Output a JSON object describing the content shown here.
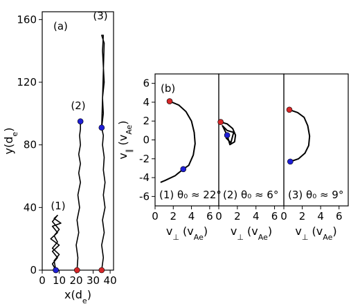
{
  "chart_data": [
    {
      "type": "line",
      "panel_label": "(a)",
      "xlabel": "x(d_e)",
      "ylabel": "y(d_e)",
      "xlim": [
        0,
        42
      ],
      "ylim": [
        0,
        165
      ],
      "xticks": [
        0,
        10,
        20,
        30,
        40
      ],
      "yticks": [
        0,
        40,
        80,
        120,
        160
      ],
      "grid": false,
      "series": [
        {
          "name": "(1)",
          "start": [
            8,
            0
          ],
          "end": [
            8,
            0
          ],
          "points": [
            [
              8,
              0
            ],
            [
              6,
              4
            ],
            [
              9,
              8
            ],
            [
              6,
              12
            ],
            [
              10,
              16
            ],
            [
              5,
              20
            ],
            [
              9,
              24
            ],
            [
              6,
              28
            ],
            [
              11,
              30
            ],
            [
              7,
              33
            ],
            [
              9,
              35
            ],
            [
              6,
              31
            ],
            [
              10,
              26
            ],
            [
              7,
              22
            ],
            [
              9,
              18
            ],
            [
              6,
              14
            ],
            [
              10,
              10
            ],
            [
              7,
              6
            ],
            [
              8,
              0
            ]
          ]
        },
        {
          "name": "(2)",
          "start": [
            20.5,
            0
          ],
          "end": [
            22.5,
            95
          ],
          "points": [
            [
              20.5,
              0
            ],
            [
              21,
              8
            ],
            [
              20,
              16
            ],
            [
              21.5,
              24
            ],
            [
              20.5,
              32
            ],
            [
              22,
              40
            ],
            [
              21,
              48
            ],
            [
              22.5,
              56
            ],
            [
              21.5,
              62
            ],
            [
              22.5,
              68
            ],
            [
              21.5,
              74
            ],
            [
              22.5,
              80
            ],
            [
              22,
              86
            ],
            [
              22.5,
              90
            ],
            [
              22.5,
              95
            ]
          ]
        },
        {
          "name": "(3)",
          "start": [
            35,
            0
          ],
          "end": [
            35,
            91
          ],
          "points": [
            [
              35,
              0
            ],
            [
              36,
              8
            ],
            [
              35,
              16
            ],
            [
              36.5,
              24
            ],
            [
              35.5,
              32
            ],
            [
              37,
              40
            ],
            [
              36,
              48
            ],
            [
              37,
              56
            ],
            [
              36,
              64
            ],
            [
              36.5,
              72
            ],
            [
              35.5,
              80
            ],
            [
              36,
              86
            ],
            [
              35,
              91
            ],
            [
              36,
              100
            ],
            [
              35.5,
              110
            ],
            [
              36.5,
              120
            ],
            [
              36,
              130
            ],
            [
              35.5,
              140
            ],
            [
              36,
              150
            ],
            [
              35,
              150
            ],
            [
              36.5,
              145
            ],
            [
              35,
              91
            ]
          ]
        }
      ],
      "annotations": [
        "(1)",
        "(2)",
        "(3)"
      ]
    },
    {
      "type": "line",
      "panel_label": "(b)",
      "xlabel": "v_⊥ (v_Ae)",
      "ylabel": "v_∥ (v_Ae)",
      "xlim": [
        0,
        7
      ],
      "ylim": [
        -7,
        7
      ],
      "xticks": [
        0,
        2,
        4,
        6
      ],
      "yticks": [
        -6,
        -4,
        -2,
        0,
        2,
        4,
        6
      ],
      "grid": false,
      "subpanels": [
        {
          "name": "(1)",
          "annotation": "(1) θ₀ ≈ 22°",
          "start": [
            1.6,
            4.1
          ],
          "end": [
            3.1,
            -3.1
          ],
          "points": [
            [
              1.6,
              4.1
            ],
            [
              2.6,
              3.7
            ],
            [
              3.4,
              3.0
            ],
            [
              4.0,
              2.0
            ],
            [
              4.3,
              0.8
            ],
            [
              4.4,
              -0.4
            ],
            [
              4.2,
              -1.6
            ],
            [
              3.7,
              -2.7
            ],
            [
              3.1,
              -3.1
            ],
            [
              2.2,
              -3.8
            ],
            [
              1.1,
              -4.3
            ],
            [
              0.6,
              -4.5
            ]
          ]
        },
        {
          "name": "(2)",
          "annotation": "(2) θ₀ ≈ 6°",
          "start": [
            0.2,
            1.9
          ],
          "end": [
            0.9,
            0.5
          ],
          "points": [
            [
              0.2,
              1.9
            ],
            [
              0.9,
              1.7
            ],
            [
              1.5,
              1.2
            ],
            [
              1.8,
              0.5
            ],
            [
              1.7,
              -0.2
            ],
            [
              1.2,
              -0.5
            ],
            [
              0.9,
              0.5
            ],
            [
              0.4,
              1.5
            ],
            [
              0.9,
              1.0
            ],
            [
              1.6,
              0.8
            ],
            [
              1.3,
              -0.3
            ],
            [
              0.8,
              0.2
            ],
            [
              0.9,
              0.5
            ]
          ]
        },
        {
          "name": "(3)",
          "annotation": "(3) θ₀ ≈ 9°",
          "start": [
            0.6,
            3.2
          ],
          "end": [
            0.7,
            -2.3
          ],
          "points": [
            [
              0.6,
              3.2
            ],
            [
              1.5,
              2.9
            ],
            [
              2.2,
              2.4
            ],
            [
              2.6,
              1.5
            ],
            [
              2.8,
              0.4
            ],
            [
              2.7,
              -0.6
            ],
            [
              2.3,
              -1.4
            ],
            [
              1.6,
              -2.0
            ],
            [
              0.7,
              -2.3
            ]
          ]
        }
      ]
    }
  ],
  "colors": {
    "line": "#000000",
    "start_marker": "#d62728",
    "end_marker": "#1f1fd6"
  }
}
